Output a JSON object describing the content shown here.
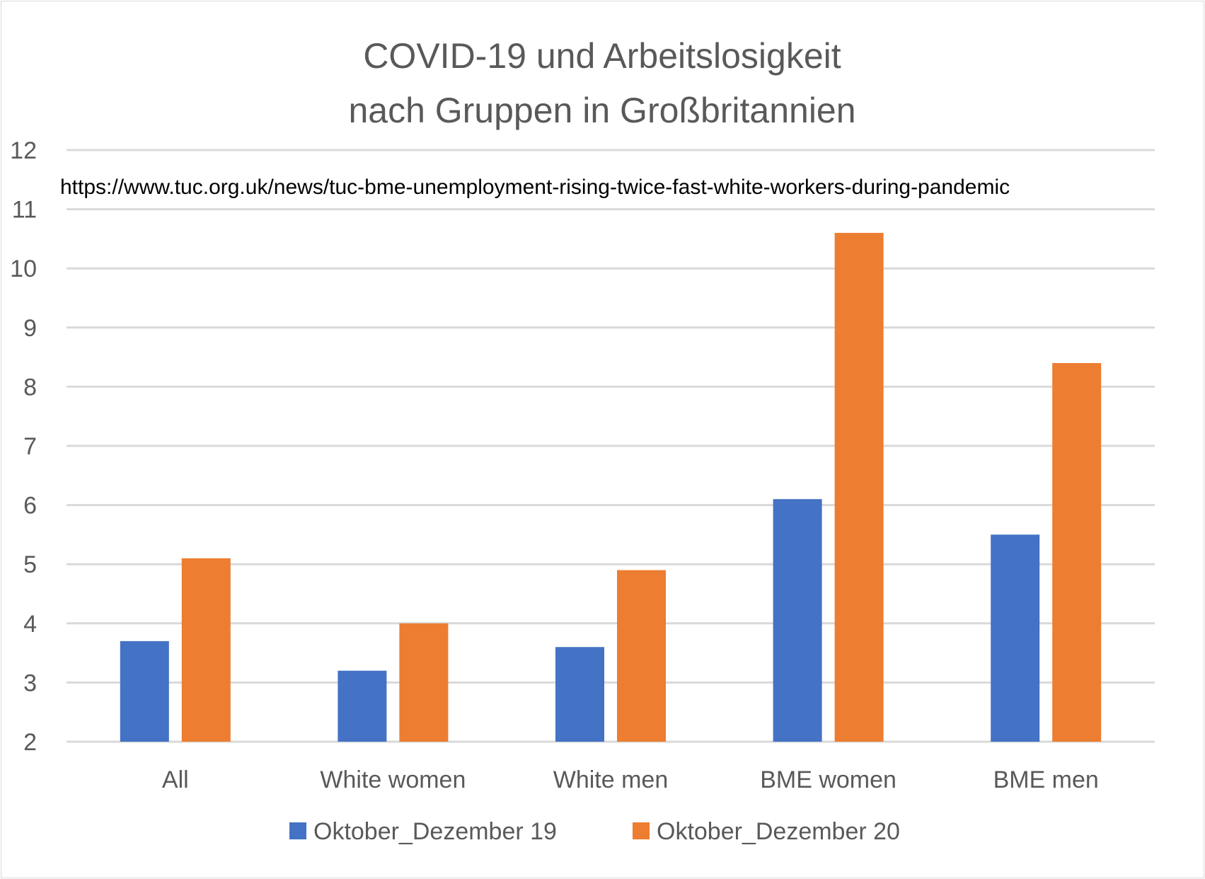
{
  "chart_data": {
    "type": "bar",
    "title_lines": [
      "COVID-19 und Arbeitslosigkeit",
      "nach Gruppen in Großbritannien"
    ],
    "annotation": "https://www.tuc.org.uk/news/tuc-bme-unemployment-rising-twice-fast-white-workers-during-pandemic",
    "categories": [
      "All",
      "White women",
      "White men",
      "BME women",
      "BME men"
    ],
    "series": [
      {
        "name": "Oktober_Dezember 19",
        "color": "#4472c4",
        "values": [
          3.7,
          3.2,
          3.6,
          6.1,
          5.5
        ]
      },
      {
        "name": "Oktober_Dezember 20",
        "color": "#ed7d31",
        "values": [
          5.1,
          4.0,
          4.9,
          10.6,
          8.4
        ]
      }
    ],
    "xlabel": "",
    "ylabel": "",
    "ylim": [
      2,
      12
    ],
    "yticks": [
      2,
      3,
      4,
      5,
      6,
      7,
      8,
      9,
      10,
      11,
      12
    ],
    "grid": true,
    "gridline_color": "#d9d9d9",
    "legend_position": "bottom"
  }
}
